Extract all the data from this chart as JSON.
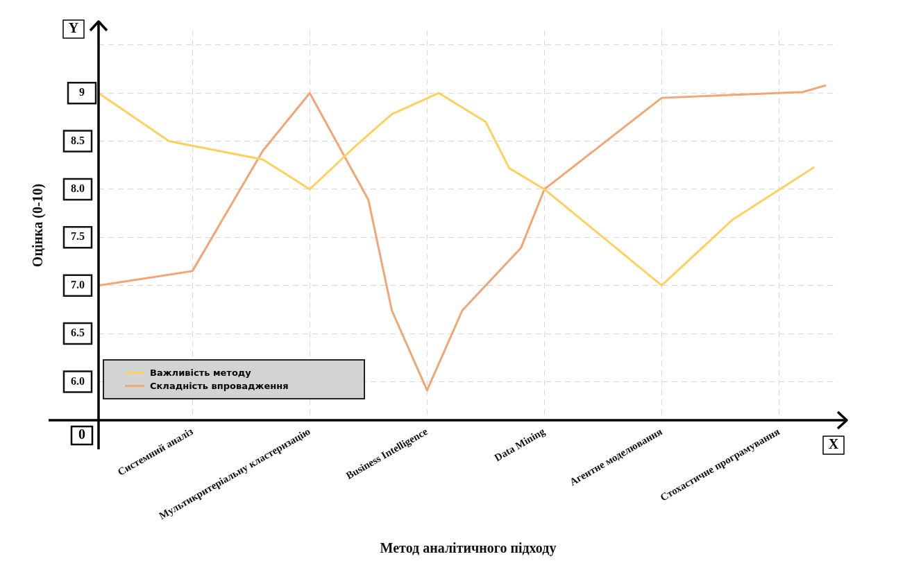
{
  "chart_data": {
    "type": "line",
    "xlabel": "Метод аналітичного підходу",
    "ylabel": "Оцінка (0-10)",
    "annotations": [
      "Y",
      "X",
      "0"
    ],
    "categories": [
      null,
      null,
      null,
      null,
      null,
      null,
      null,
      null,
      "Системний аналіз",
      null,
      null,
      null,
      null,
      null,
      null,
      null,
      null,
      null,
      "Мультикритеріальну кластеризацію",
      null,
      null,
      null,
      null,
      null,
      null,
      null,
      null,
      null,
      "Business Intelligence",
      null,
      null,
      null,
      null,
      null,
      null,
      null,
      null,
      null,
      "Data Mining",
      null,
      null,
      null,
      null,
      null,
      null,
      null,
      null,
      null,
      "Агентне моделювання",
      null,
      null,
      null,
      null,
      null,
      null,
      null,
      null,
      null,
      "Стохастичне програмування",
      null,
      null,
      null,
      null,
      null
    ],
    "ylim": [
      5.6,
      9.65
    ],
    "yticks": [
      {
        "value": 6,
        "label": "6.0"
      },
      {
        "value": 6.5,
        "label": "6.5"
      },
      {
        "value": 7,
        "label": "7.0"
      },
      {
        "value": 7.5,
        "label": "7.5"
      },
      {
        "value": 8,
        "label": "8.0"
      },
      {
        "value": 8.5,
        "label": "8.5"
      },
      9,
      {
        "value": 9.5,
        "label": null
      }
    ],
    "grid": true,
    "legend": "bottom left",
    "line_style": "solid",
    "series": [
      {
        "name": "Важливість методу",
        "color": "#ffd05e",
        "values": [
          9.0,
          null,
          null,
          null,
          null,
          null,
          8.5,
          null,
          null,
          null,
          null,
          null,
          null,
          null,
          8.31,
          null,
          null,
          null,
          8.0,
          null,
          null,
          null,
          8.46,
          null,
          null,
          8.78,
          null,
          null,
          null,
          9.0,
          null,
          null,
          null,
          8.7,
          null,
          8.22,
          null,
          null,
          8.0,
          null,
          null,
          null,
          null,
          null,
          null,
          null,
          null,
          null,
          7.0,
          null,
          null,
          null,
          null,
          null,
          7.68,
          null,
          null,
          null,
          null,
          null,
          null,
          8.23,
          null,
          null
        ]
      },
      {
        "name": "Складність впровадження",
        "color": "#f0a676",
        "values": [
          7.0,
          null,
          null,
          null,
          null,
          null,
          null,
          null,
          7.15,
          null,
          null,
          null,
          null,
          null,
          8.4,
          null,
          null,
          null,
          9.0,
          null,
          null,
          null,
          null,
          7.89,
          null,
          6.74,
          null,
          null,
          5.91,
          null,
          null,
          6.74,
          null,
          null,
          null,
          null,
          7.39,
          null,
          8.0,
          null,
          null,
          null,
          null,
          null,
          null,
          null,
          null,
          null,
          8.95,
          null,
          null,
          null,
          null,
          null,
          null,
          null,
          null,
          null,
          null,
          null,
          9.01,
          null,
          9.08,
          null
        ]
      }
    ]
  }
}
